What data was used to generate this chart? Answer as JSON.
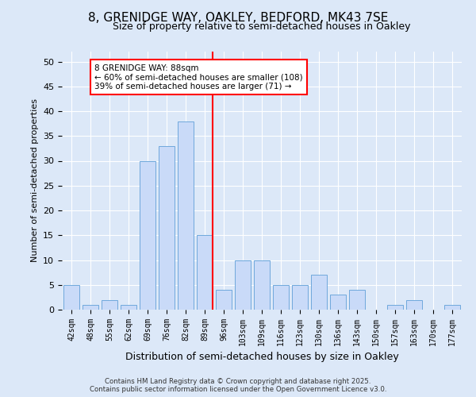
{
  "title": "8, GRENIDGE WAY, OAKLEY, BEDFORD, MK43 7SE",
  "subtitle": "Size of property relative to semi-detached houses in Oakley",
  "xlabel": "Distribution of semi-detached houses by size in Oakley",
  "ylabel": "Number of semi-detached properties",
  "categories": [
    "42sqm",
    "48sqm",
    "55sqm",
    "62sqm",
    "69sqm",
    "76sqm",
    "82sqm",
    "89sqm",
    "96sqm",
    "103sqm",
    "109sqm",
    "116sqm",
    "123sqm",
    "130sqm",
    "136sqm",
    "143sqm",
    "150sqm",
    "157sqm",
    "163sqm",
    "170sqm",
    "177sqm"
  ],
  "values": [
    5,
    1,
    2,
    1,
    30,
    33,
    38,
    15,
    4,
    10,
    10,
    5,
    5,
    7,
    3,
    4,
    0,
    1,
    2,
    0,
    1
  ],
  "bar_color": "#c9daf8",
  "bar_edge_color": "#6fa8dc",
  "vline_x_index": 7,
  "vline_color": "red",
  "annotation_text": "8 GRENIDGE WAY: 88sqm\n← 60% of semi-detached houses are smaller (108)\n39% of semi-detached houses are larger (71) →",
  "annotation_box_color": "white",
  "annotation_box_edge": "red",
  "background_color": "#dce8f8",
  "footer": "Contains HM Land Registry data © Crown copyright and database right 2025.\nContains public sector information licensed under the Open Government Licence v3.0.",
  "ylim": [
    0,
    52
  ],
  "yticks": [
    0,
    5,
    10,
    15,
    20,
    25,
    30,
    35,
    40,
    45,
    50
  ],
  "title_fontsize": 11,
  "subtitle_fontsize": 9
}
